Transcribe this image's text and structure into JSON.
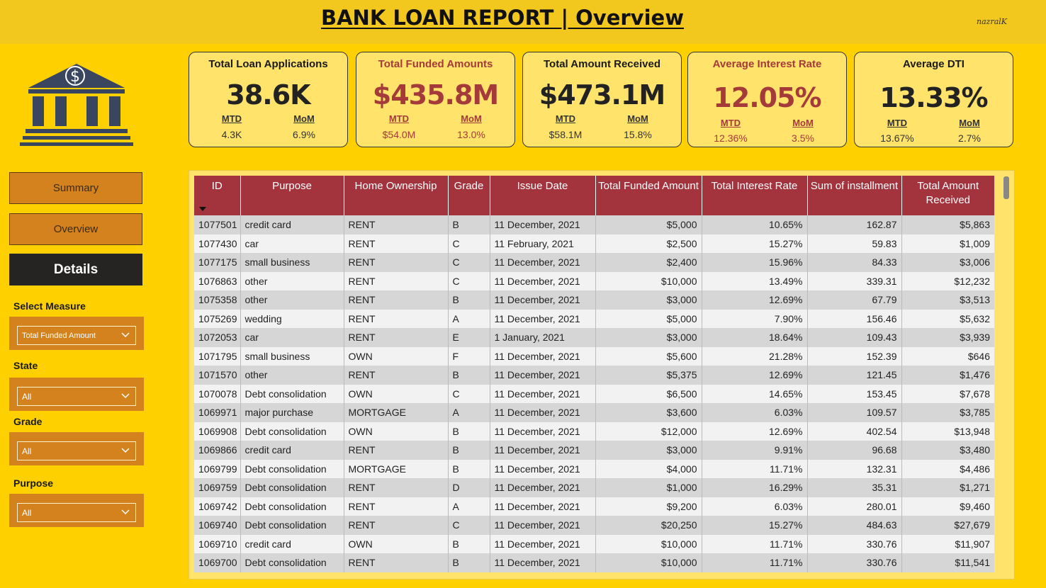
{
  "header": {
    "title": "BANK LOAN REPORT | Overview",
    "signature": "nazralK"
  },
  "nav": {
    "summary": "Summary",
    "overview": "Overview",
    "details": "Details"
  },
  "filters": {
    "measure": {
      "label": "Select Measure",
      "value": "Total Funded Amount"
    },
    "state": {
      "label": "State",
      "value": "All"
    },
    "grade": {
      "label": "Grade",
      "value": "All"
    },
    "purpose": {
      "label": "Purpose",
      "value": "All"
    }
  },
  "kpis": [
    {
      "title": "Total Loan Applications",
      "value": "38.6K",
      "mtd_label": "MTD",
      "mtd": "4.3K",
      "mom_label": "MoM",
      "mom": "6.9%"
    },
    {
      "title": "Total Funded Amounts",
      "value": "$435.8M",
      "mtd_label": "MTD",
      "mtd": "$54.0M",
      "mom_label": "MoM",
      "mom": "13.0%"
    },
    {
      "title": "Total Amount Received",
      "value": "$473.1M",
      "mtd_label": "MTD",
      "mtd": "$58.1M",
      "mom_label": "MoM",
      "mom": "15.8%"
    },
    {
      "title": "Average Interest Rate",
      "value": "12.05%",
      "mtd_label": "MTD",
      "mtd": "12.36%",
      "mom_label": "MoM",
      "mom": "3.5%"
    },
    {
      "title": "Average DTI",
      "value": "13.33%",
      "mtd_label": "MTD",
      "mtd": "13.67%",
      "mom_label": "MoM",
      "mom": "2.7%"
    }
  ],
  "colors": {
    "background": "#FFD000",
    "accent_red": "#A53A3A",
    "header_red": "#A3333D",
    "button_orange": "#D4821E",
    "dark": "#252423"
  },
  "table": {
    "columns": [
      "ID",
      "Purpose",
      "Home Ownership",
      "Grade",
      "Issue Date",
      "Total Funded Amount",
      "Total Interest Rate",
      "Sum of installment",
      "Total Amount Received"
    ],
    "rows": [
      [
        "1077501",
        "credit card",
        "RENT",
        "B",
        "11 December, 2021",
        "$5,000",
        "10.65%",
        "162.87",
        "$5,863"
      ],
      [
        "1077430",
        "car",
        "RENT",
        "C",
        "11 February, 2021",
        "$2,500",
        "15.27%",
        "59.83",
        "$1,009"
      ],
      [
        "1077175",
        "small business",
        "RENT",
        "C",
        "11 December, 2021",
        "$2,400",
        "15.96%",
        "84.33",
        "$3,006"
      ],
      [
        "1076863",
        "other",
        "RENT",
        "C",
        "11 December, 2021",
        "$10,000",
        "13.49%",
        "339.31",
        "$12,232"
      ],
      [
        "1075358",
        "other",
        "RENT",
        "B",
        "11 December, 2021",
        "$3,000",
        "12.69%",
        "67.79",
        "$3,513"
      ],
      [
        "1075269",
        "wedding",
        "RENT",
        "A",
        "11 December, 2021",
        "$5,000",
        "7.90%",
        "156.46",
        "$5,632"
      ],
      [
        "1072053",
        "car",
        "RENT",
        "E",
        "1 January, 2021",
        "$3,000",
        "18.64%",
        "109.43",
        "$3,939"
      ],
      [
        "1071795",
        "small business",
        "OWN",
        "F",
        "11 December, 2021",
        "$5,600",
        "21.28%",
        "152.39",
        "$646"
      ],
      [
        "1071570",
        "other",
        "RENT",
        "B",
        "11 December, 2021",
        "$5,375",
        "12.69%",
        "121.45",
        "$1,476"
      ],
      [
        "1070078",
        "Debt consolidation",
        "OWN",
        "C",
        "11 December, 2021",
        "$6,500",
        "14.65%",
        "153.45",
        "$7,678"
      ],
      [
        "1069971",
        "major purchase",
        "MORTGAGE",
        "A",
        "11 December, 2021",
        "$3,600",
        "6.03%",
        "109.57",
        "$3,785"
      ],
      [
        "1069908",
        "Debt consolidation",
        "OWN",
        "B",
        "11 December, 2021",
        "$12,000",
        "12.69%",
        "402.54",
        "$13,948"
      ],
      [
        "1069866",
        "credit card",
        "RENT",
        "B",
        "11 December, 2021",
        "$3,000",
        "9.91%",
        "96.68",
        "$3,480"
      ],
      [
        "1069799",
        "Debt consolidation",
        "MORTGAGE",
        "B",
        "11 December, 2021",
        "$4,000",
        "11.71%",
        "132.31",
        "$4,486"
      ],
      [
        "1069759",
        "Debt consolidation",
        "RENT",
        "D",
        "11 December, 2021",
        "$1,000",
        "16.29%",
        "35.31",
        "$1,271"
      ],
      [
        "1069742",
        "Debt consolidation",
        "RENT",
        "A",
        "11 December, 2021",
        "$9,200",
        "6.03%",
        "280.01",
        "$9,460"
      ],
      [
        "1069740",
        "Debt consolidation",
        "RENT",
        "C",
        "11 December, 2021",
        "$20,250",
        "15.27%",
        "484.63",
        "$27,679"
      ],
      [
        "1069710",
        "credit card",
        "OWN",
        "B",
        "11 December, 2021",
        "$10,000",
        "11.71%",
        "330.76",
        "$11,907"
      ],
      [
        "1069700",
        "Debt consolidation",
        "RENT",
        "B",
        "11 December, 2021",
        "$10,000",
        "11.71%",
        "330.76",
        "$11,541"
      ]
    ]
  }
}
